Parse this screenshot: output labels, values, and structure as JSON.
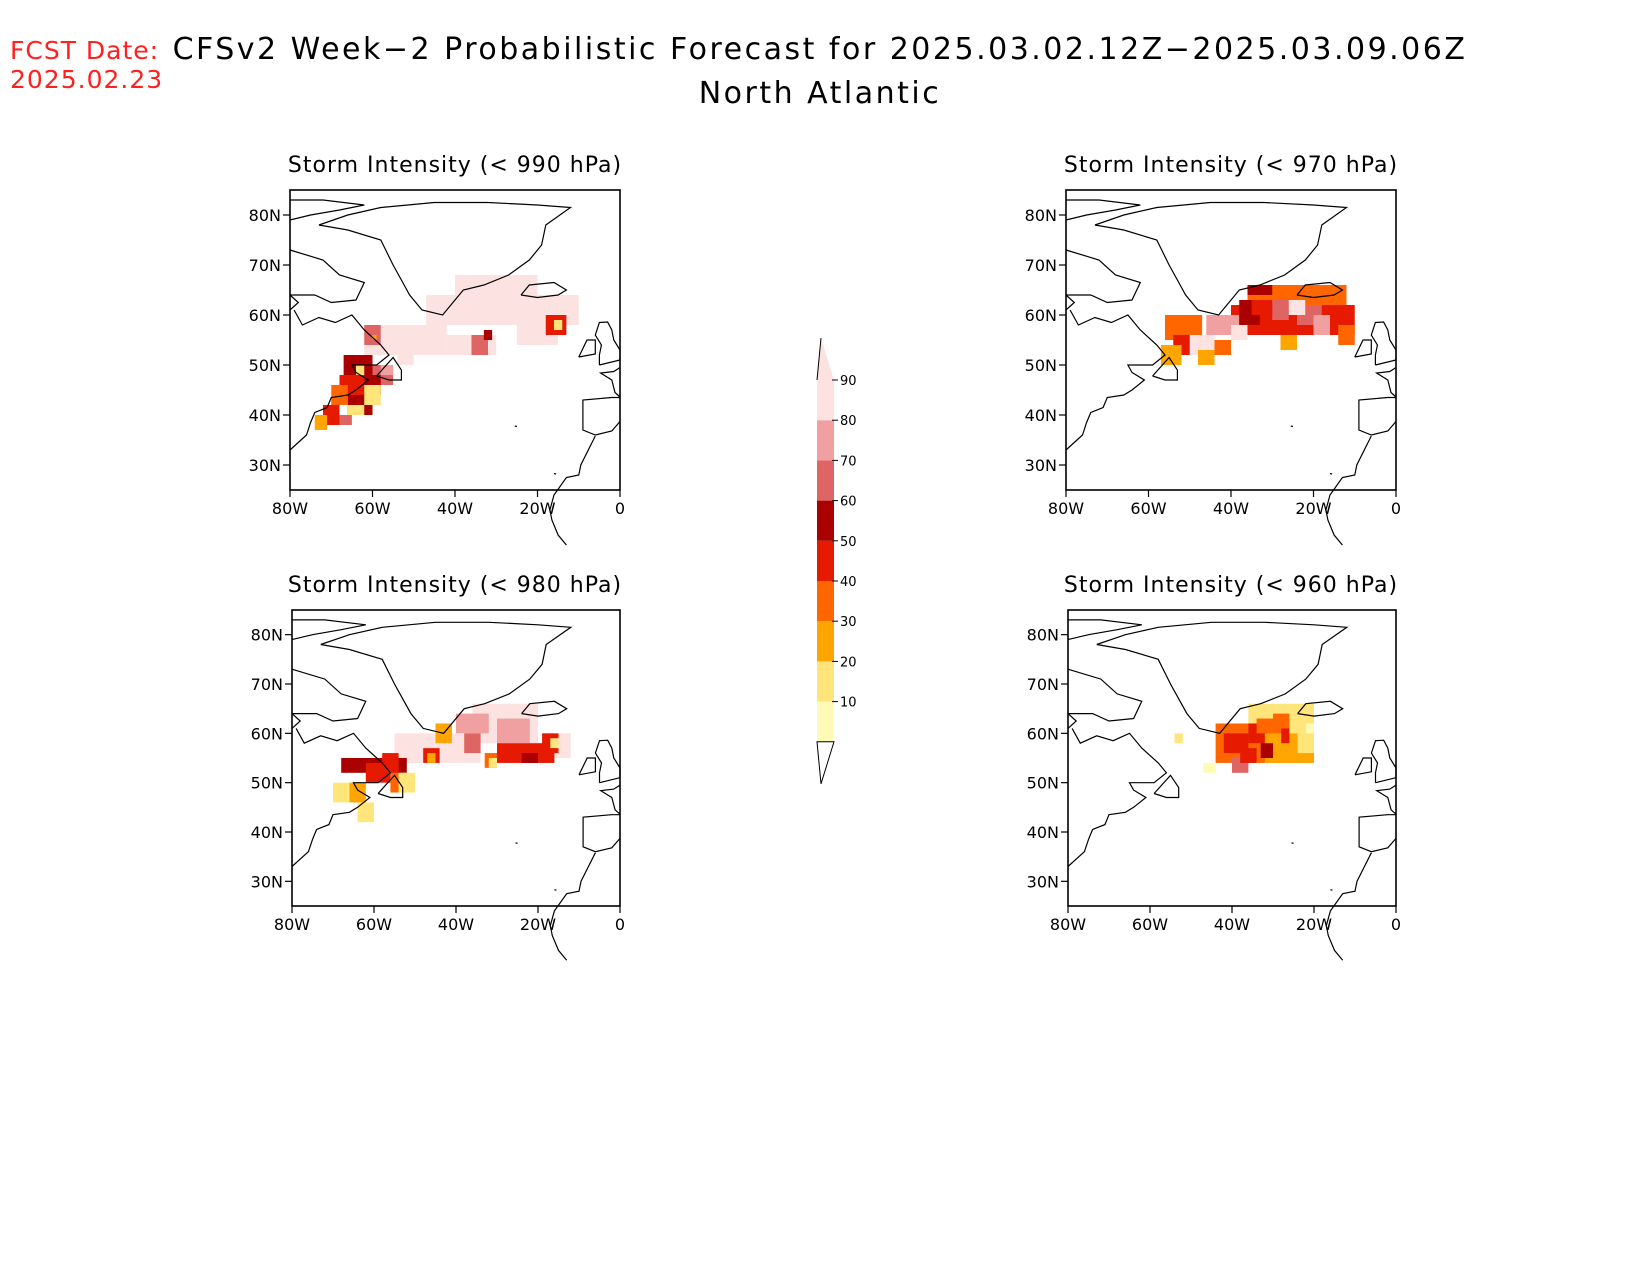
{
  "header": {
    "fcst_label": "FCST Date:",
    "fcst_date": "2025.02.23",
    "title": "CFSv2 Week−2 Probabilistic Forecast for 2025.03.02.12Z−2025.03.09.06Z",
    "subtitle": "North Atlantic"
  },
  "axes": {
    "lat_ticks": [
      "80N",
      "70N",
      "60N",
      "50N",
      "40N",
      "30N"
    ],
    "lon_ticks": [
      "80W",
      "60W",
      "40W",
      "20W",
      "0"
    ],
    "lat_values": [
      80,
      70,
      60,
      50,
      40,
      30
    ],
    "lon_values": [
      -80,
      -60,
      -40,
      -20,
      0
    ],
    "lat_range": [
      25,
      85
    ],
    "lon_range": [
      -80,
      0
    ]
  },
  "colorbar": {
    "labels": [
      "10",
      "20",
      "30",
      "40",
      "50",
      "60",
      "70",
      "80",
      "90"
    ],
    "colors": [
      "#fffbb6",
      "#ffe57a",
      "#ffa500",
      "#ff6600",
      "#e61a00",
      "#aa0000",
      "#df6464",
      "#f0a0a0",
      "#fde2e2"
    ]
  },
  "panels": [
    {
      "id": "p990",
      "title": "Storm Intensity (< 990 hPa)",
      "cells": [
        [
          -40,
          64,
          -20,
          68,
          9
        ],
        [
          -47,
          58,
          -10,
          64,
          9
        ],
        [
          -62,
          52,
          -42,
          58,
          9
        ],
        [
          -42,
          52,
          -30,
          56,
          9
        ],
        [
          -25,
          54,
          -15,
          58,
          9
        ],
        [
          -18,
          56,
          -13,
          60,
          5
        ],
        [
          -16,
          57,
          -14,
          59,
          2
        ],
        [
          -62,
          54,
          -58,
          58,
          7
        ],
        [
          -60,
          55,
          -59,
          56,
          3
        ],
        [
          -36,
          52,
          -32,
          56,
          7
        ],
        [
          -33,
          55,
          -31,
          57,
          6
        ],
        [
          -67,
          48,
          -60,
          52,
          6
        ],
        [
          -60,
          46,
          -55,
          50,
          7
        ],
        [
          -63,
          44,
          -58,
          48,
          6
        ],
        [
          -58,
          48,
          -55,
          50,
          8
        ],
        [
          -68,
          44,
          -62,
          48,
          5
        ],
        [
          -70,
          42,
          -66,
          46,
          4
        ],
        [
          -66,
          40,
          -60,
          44,
          6
        ],
        [
          -72,
          38,
          -68,
          42,
          5
        ],
        [
          -74,
          37,
          -71,
          40,
          3
        ],
        [
          -68,
          38,
          -65,
          40,
          7
        ],
        [
          -62,
          42,
          -58,
          46,
          2
        ],
        [
          -64,
          48,
          -62,
          50,
          2
        ],
        [
          -66,
          40,
          -62,
          42,
          2
        ],
        [
          -54,
          50,
          -50,
          52,
          9
        ]
      ]
    },
    {
      "id": "p970",
      "title": "Storm Intensity (< 970 hPa)",
      "cells": [
        [
          -36,
          60,
          -12,
          66,
          4
        ],
        [
          -40,
          56,
          -10,
          62,
          5
        ],
        [
          -56,
          55,
          -47,
          60,
          4
        ],
        [
          -54,
          52,
          -46,
          56,
          5
        ],
        [
          -57,
          50,
          -52,
          54,
          3
        ],
        [
          -50,
          52,
          -44,
          56,
          9
        ],
        [
          -46,
          56,
          -38,
          60,
          8
        ],
        [
          -38,
          58,
          -32,
          63,
          6
        ],
        [
          -33,
          56,
          -28,
          60,
          5
        ],
        [
          -30,
          59,
          -26,
          63,
          7
        ],
        [
          -35,
          60,
          -30,
          63,
          5
        ],
        [
          -24,
          58,
          -18,
          62,
          7
        ],
        [
          -20,
          56,
          -16,
          60,
          8
        ],
        [
          -16,
          56,
          -12,
          60,
          5
        ],
        [
          -14,
          54,
          -10,
          58,
          4
        ],
        [
          -44,
          52,
          -40,
          55,
          4
        ],
        [
          -28,
          53,
          -24,
          56,
          3
        ],
        [
          -48,
          50,
          -44,
          53,
          3
        ],
        [
          -36,
          64,
          -30,
          66,
          6
        ],
        [
          -26,
          60,
          -22,
          63,
          9
        ],
        [
          -40,
          55,
          -36,
          58,
          9
        ]
      ]
    },
    {
      "id": "p980",
      "title": "Storm Intensity (< 980 hPa)",
      "cells": [
        [
          -36,
          58,
          -20,
          66,
          9
        ],
        [
          -40,
          60,
          -32,
          64,
          8
        ],
        [
          -30,
          58,
          -22,
          63,
          8
        ],
        [
          -55,
          54,
          -34,
          60,
          9
        ],
        [
          -18,
          55,
          -12,
          60,
          9
        ],
        [
          -30,
          54,
          -16,
          58,
          5
        ],
        [
          -68,
          52,
          -52,
          55,
          6
        ],
        [
          -62,
          50,
          -56,
          54,
          5
        ],
        [
          -56,
          48,
          -52,
          52,
          4
        ],
        [
          -58,
          52,
          -54,
          56,
          5
        ],
        [
          -48,
          54,
          -44,
          57,
          5
        ],
        [
          -47,
          54,
          -45,
          56,
          3
        ],
        [
          -45,
          58,
          -41,
          62,
          3
        ],
        [
          -33,
          53,
          -30,
          56,
          4
        ],
        [
          -32,
          53,
          -30,
          55,
          2
        ],
        [
          -19,
          56,
          -15,
          60,
          5
        ],
        [
          -17,
          57,
          -15,
          59,
          2
        ],
        [
          -66,
          46,
          -62,
          50,
          3
        ],
        [
          -64,
          42,
          -60,
          46,
          2
        ],
        [
          -70,
          46,
          -66,
          50,
          2
        ],
        [
          -54,
          48,
          -50,
          52,
          2
        ],
        [
          -24,
          54,
          -20,
          56,
          6
        ],
        [
          -38,
          56,
          -34,
          60,
          7
        ]
      ]
    },
    {
      "id": "p960",
      "title": "Storm Intensity (< 960 hPa)",
      "cells": [
        [
          -36,
          60,
          -20,
          66,
          2
        ],
        [
          -44,
          54,
          -26,
          62,
          4
        ],
        [
          -32,
          54,
          -20,
          60,
          3
        ],
        [
          -24,
          56,
          -20,
          62,
          2
        ],
        [
          -42,
          56,
          -36,
          60,
          5
        ],
        [
          -36,
          58,
          -32,
          62,
          5
        ],
        [
          -33,
          55,
          -30,
          58,
          6
        ],
        [
          -40,
          52,
          -36,
          55,
          7
        ],
        [
          -34,
          60,
          -30,
          63,
          4
        ],
        [
          -28,
          58,
          -26,
          61,
          5
        ],
        [
          -22,
          60,
          -20,
          62,
          1
        ],
        [
          -54,
          58,
          -52,
          60,
          2
        ],
        [
          -47,
          52,
          -44,
          54,
          1
        ],
        [
          -30,
          62,
          -26,
          64,
          4
        ],
        [
          -38,
          54,
          -34,
          57,
          5
        ]
      ]
    }
  ]
}
